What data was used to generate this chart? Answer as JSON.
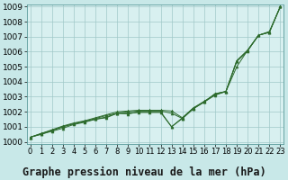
{
  "title": "Graphe pression niveau de la mer (hPa)",
  "background_color": "#c8e8e8",
  "plot_bg_color": "#d8f0f0",
  "grid_color": "#a0c8c8",
  "x_values": [
    0,
    1,
    2,
    3,
    4,
    5,
    6,
    7,
    8,
    9,
    10,
    11,
    12,
    13,
    14,
    15,
    16,
    17,
    18,
    19,
    20,
    21,
    22,
    23
  ],
  "line1": [
    1000.3,
    1000.55,
    1000.75,
    1001.0,
    1001.2,
    1001.35,
    1001.55,
    1001.75,
    1001.9,
    1002.0,
    1002.05,
    1002.05,
    1002.05,
    1001.9,
    1001.55,
    1002.2,
    1002.65,
    1003.1,
    1003.35,
    1005.35,
    1006.05,
    1007.1,
    1007.35,
    1009.0
  ],
  "line2": [
    1000.3,
    1000.55,
    1000.8,
    1001.05,
    1001.25,
    1001.4,
    1001.6,
    1001.8,
    1002.0,
    1002.05,
    1002.1,
    1002.1,
    1002.1,
    1002.05,
    1001.6,
    1002.25,
    1002.7,
    1003.15,
    1003.35,
    1005.0,
    1006.1,
    1007.1,
    1007.3,
    1009.0
  ],
  "line3": [
    1000.3,
    1000.5,
    1000.75,
    1001.0,
    1001.2,
    1001.35,
    1001.5,
    1001.65,
    1001.9,
    1001.9,
    1001.95,
    1001.95,
    1001.95,
    1001.0,
    1001.55,
    1002.2,
    1002.65,
    1003.2,
    1003.35,
    1005.4,
    1006.1,
    1007.1,
    1007.3,
    1009.0
  ],
  "line4": [
    1000.3,
    1000.5,
    1000.7,
    1000.9,
    1001.15,
    1001.3,
    1001.5,
    1001.6,
    1001.9,
    1001.85,
    1002.0,
    1002.0,
    1002.0,
    1001.0,
    1001.6,
    1002.25,
    1002.65,
    1003.2,
    1003.35,
    1005.4,
    1006.1,
    1007.1,
    1007.3,
    1009.0
  ],
  "line_color": "#2d6b2d",
  "marker_color": "#2d6b2d",
  "ylim": [
    999.85,
    1009.15
  ],
  "yticks": [
    1000,
    1001,
    1002,
    1003,
    1004,
    1005,
    1006,
    1007,
    1008,
    1009
  ],
  "xlim": [
    -0.3,
    23.3
  ],
  "title_fontsize": 8.5,
  "tick_fontsize": 6.5
}
